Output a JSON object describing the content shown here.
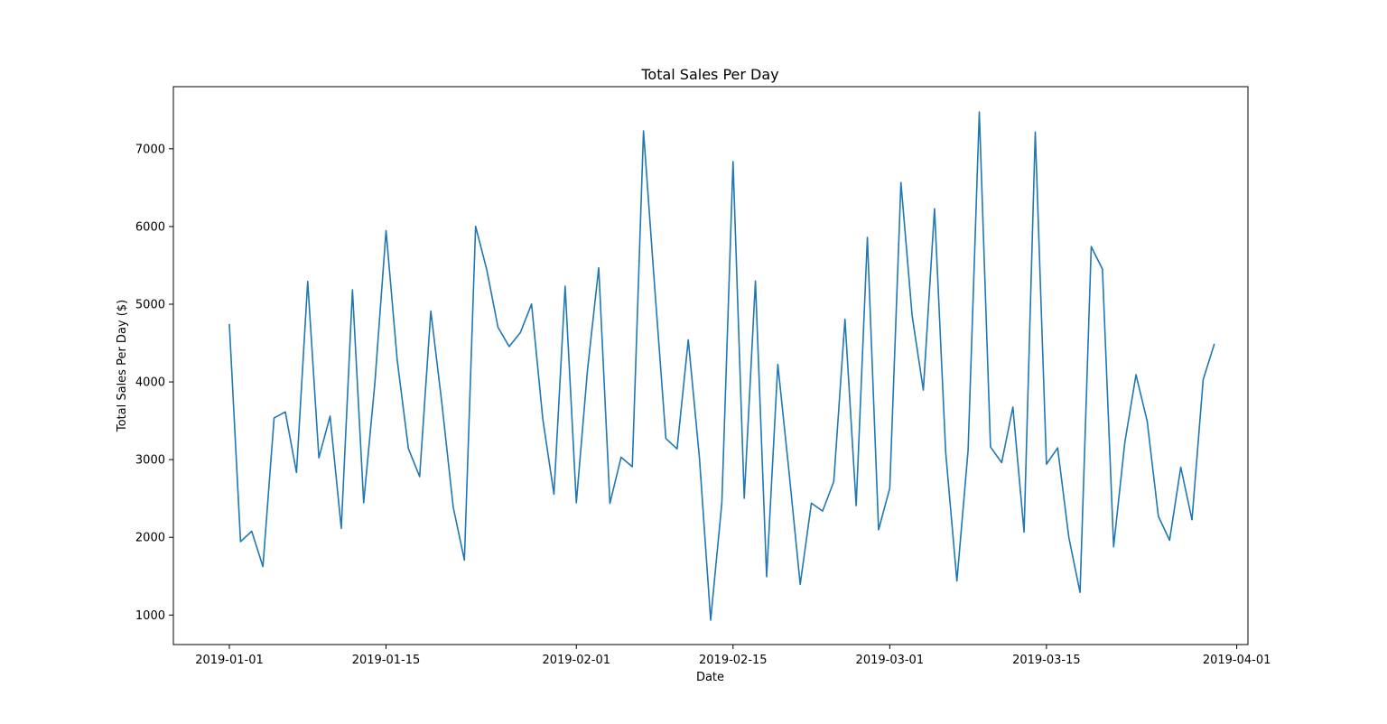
{
  "chart_data": {
    "type": "line",
    "title": "Total Sales Per Day",
    "xlabel": "Date",
    "ylabel": "Total Sales Per Day ($)",
    "x_start": "2019-01-01",
    "xlim": [
      "2018-12-27",
      "2019-04-02"
    ],
    "ylim": [
      620,
      7800
    ],
    "x_ticks": [
      {
        "date": "2019-01-01",
        "label": "2019-01-01"
      },
      {
        "date": "2019-01-15",
        "label": "2019-01-15"
      },
      {
        "date": "2019-02-01",
        "label": "2019-02-01"
      },
      {
        "date": "2019-02-15",
        "label": "2019-02-15"
      },
      {
        "date": "2019-03-01",
        "label": "2019-03-01"
      },
      {
        "date": "2019-03-15",
        "label": "2019-03-15"
      },
      {
        "date": "2019-04-01",
        "label": "2019-04-01"
      }
    ],
    "y_ticks": [
      1000,
      2000,
      3000,
      4000,
      5000,
      6000,
      7000
    ],
    "grid": false,
    "color": "#1f77b4",
    "series": [
      {
        "x": [
          "2019-01-01",
          "2019-01-02",
          "2019-01-03",
          "2019-01-04",
          "2019-01-05",
          "2019-01-06",
          "2019-01-07",
          "2019-01-08",
          "2019-01-09",
          "2019-01-10",
          "2019-01-11",
          "2019-01-12",
          "2019-01-13",
          "2019-01-14",
          "2019-01-15",
          "2019-01-16",
          "2019-01-17",
          "2019-01-18",
          "2019-01-19",
          "2019-01-20",
          "2019-01-21",
          "2019-01-22",
          "2019-01-23",
          "2019-01-24",
          "2019-01-25",
          "2019-01-26",
          "2019-01-27",
          "2019-01-28",
          "2019-01-29",
          "2019-01-30",
          "2019-01-31",
          "2019-02-01",
          "2019-02-02",
          "2019-02-03",
          "2019-02-04",
          "2019-02-05",
          "2019-02-06",
          "2019-02-07",
          "2019-02-08",
          "2019-02-09",
          "2019-02-10",
          "2019-02-11",
          "2019-02-12",
          "2019-02-13",
          "2019-02-14",
          "2019-02-15",
          "2019-02-16",
          "2019-02-17",
          "2019-02-18",
          "2019-02-19",
          "2019-02-20",
          "2019-02-21",
          "2019-02-22",
          "2019-02-23",
          "2019-02-24",
          "2019-02-25",
          "2019-02-26",
          "2019-02-27",
          "2019-02-28",
          "2019-03-01",
          "2019-03-02",
          "2019-03-03",
          "2019-03-04",
          "2019-03-05",
          "2019-03-06",
          "2019-03-07",
          "2019-03-08",
          "2019-03-09",
          "2019-03-10",
          "2019-03-11",
          "2019-03-12",
          "2019-03-13",
          "2019-03-14",
          "2019-03-15",
          "2019-03-16",
          "2019-03-17",
          "2019-03-18",
          "2019-03-19",
          "2019-03-20",
          "2019-03-21",
          "2019-03-22",
          "2019-03-23",
          "2019-03-24",
          "2019-03-25",
          "2019-03-26",
          "2019-03-27",
          "2019-03-28",
          "2019-03-29",
          "2019-03-30"
        ],
        "values": [
          4745,
          1945,
          2078,
          1624,
          3537,
          3614,
          2834,
          5294,
          3023,
          3560,
          2115,
          5185,
          2445,
          3985,
          5947,
          4277,
          3141,
          2781,
          4912,
          3709,
          2389,
          1707,
          6003,
          5443,
          4704,
          4455,
          4635,
          5002,
          3527,
          2555,
          5232,
          2445,
          4158,
          5469,
          2437,
          3031,
          2909,
          7230,
          5219,
          3271,
          3139,
          4542,
          3019,
          935,
          2445,
          6835,
          2502,
          5298,
          1493,
          4226,
          2844,
          1395,
          2440,
          2338,
          2717,
          4808,
          2408,
          5861,
          2097,
          2631,
          6566,
          4852,
          3895,
          6230,
          3089,
          1438,
          3120,
          7474,
          3162,
          2962,
          3677,
          2067,
          7215,
          2942,
          3151,
          1998,
          1291,
          5741,
          5453,
          1878,
          3221,
          4093,
          3493,
          2270,
          1963,
          2903,
          2226,
          4028,
          4490
        ]
      }
    ]
  }
}
